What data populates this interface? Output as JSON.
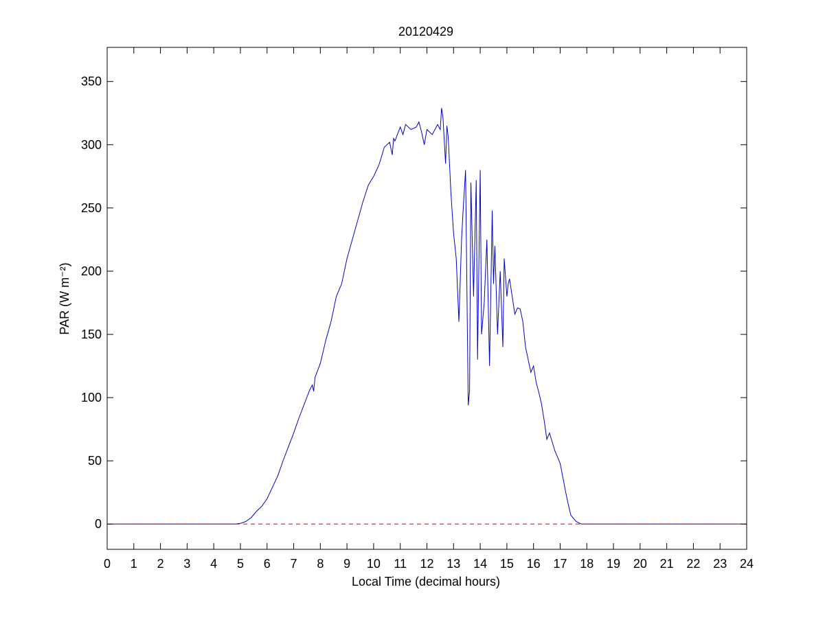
{
  "chart_data": {
    "type": "line",
    "title": "20120429",
    "xlabel": "Local Time (decimal hours)",
    "ylabel": "PAR (W m⁻²)",
    "xlim": [
      0,
      24
    ],
    "ylim": [
      -20,
      377
    ],
    "xticks": [
      0,
      1,
      2,
      3,
      4,
      5,
      6,
      7,
      8,
      9,
      10,
      11,
      12,
      13,
      14,
      15,
      16,
      17,
      18,
      19,
      20,
      21,
      22,
      23,
      24
    ],
    "yticks": [
      0,
      50,
      100,
      150,
      200,
      250,
      300,
      350
    ],
    "grid": false,
    "series": [
      {
        "color": "#0000cc",
        "style": "solid",
        "x": [
          0,
          4.8,
          5.0,
          5.2,
          5.4,
          5.6,
          5.8,
          6.0,
          6.2,
          6.4,
          6.6,
          6.8,
          7.0,
          7.2,
          7.4,
          7.6,
          7.7,
          7.75,
          7.8,
          8.0,
          8.2,
          8.4,
          8.6,
          8.8,
          9.0,
          9.2,
          9.4,
          9.6,
          9.8,
          10.0,
          10.2,
          10.4,
          10.6,
          10.7,
          10.75,
          10.8,
          11.0,
          11.1,
          11.2,
          11.4,
          11.6,
          11.7,
          11.8,
          11.9,
          12.0,
          12.2,
          12.4,
          12.5,
          12.55,
          12.6,
          12.7,
          12.75,
          12.8,
          12.9,
          13.0,
          13.1,
          13.2,
          13.3,
          13.35,
          13.45,
          13.55,
          13.6,
          13.65,
          13.75,
          13.85,
          13.9,
          14.0,
          14.05,
          14.15,
          14.25,
          14.35,
          14.45,
          14.5,
          14.55,
          14.65,
          14.75,
          14.85,
          14.9,
          15.0,
          15.05,
          15.1,
          15.2,
          15.3,
          15.4,
          15.5,
          15.6,
          15.7,
          15.8,
          15.9,
          16.0,
          16.1,
          16.2,
          16.3,
          16.4,
          16.5,
          16.6,
          16.8,
          17.0,
          17.1,
          17.2,
          17.3,
          17.4,
          17.6,
          17.8,
          18.0,
          18.2,
          18.4,
          18.6,
          18.8,
          19.0,
          19.2,
          19.4,
          19.6,
          24
        ],
        "y": [
          0,
          0,
          0.5,
          2,
          5,
          10,
          14,
          20,
          29,
          38,
          50,
          61,
          72,
          84,
          95,
          106,
          110,
          105,
          116,
          127,
          145,
          160,
          180,
          190,
          210,
          225,
          240,
          255,
          268,
          275,
          284,
          298,
          302,
          292,
          305,
          303,
          314,
          308,
          316,
          312,
          314,
          318,
          310,
          300,
          312,
          308,
          316,
          312,
          329,
          322,
          285,
          315,
          306,
          262,
          230,
          210,
          160,
          225,
          245,
          280,
          94,
          105,
          270,
          180,
          272,
          130,
          280,
          150,
          175,
          225,
          125,
          248,
          190,
          220,
          150,
          200,
          140,
          210,
          180,
          190,
          194,
          180,
          166,
          171,
          170,
          160,
          140,
          130,
          120,
          125,
          112,
          104,
          95,
          82,
          67,
          72,
          58,
          48,
          37,
          26,
          16,
          7,
          2,
          0,
          0,
          0,
          0,
          0,
          0,
          0,
          0,
          0,
          0,
          0
        ]
      },
      {
        "color": "#cc0000",
        "style": "dashed",
        "x": [
          0,
          24
        ],
        "y": [
          0,
          0
        ]
      }
    ]
  }
}
